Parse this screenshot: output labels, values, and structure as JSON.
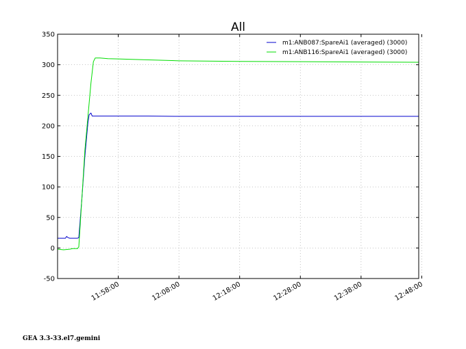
{
  "footer": {
    "text": "GEA 3.3-33.el7.gemini"
  },
  "chart_data": {
    "type": "line",
    "title": "All",
    "xlabel": "",
    "ylabel": "",
    "ylim": [
      -50,
      350
    ],
    "y_ticks": [
      -50,
      0,
      50,
      100,
      150,
      200,
      250,
      300,
      350
    ],
    "x_unit": "minutes after 11:48:00",
    "xlim": [
      0,
      59.5
    ],
    "x_ticks": [
      {
        "label": "11:58:00",
        "x": 10
      },
      {
        "label": "12:08:00",
        "x": 20
      },
      {
        "label": "12:18:00",
        "x": 30
      },
      {
        "label": "12:28:00",
        "x": 40
      },
      {
        "label": "12:38:00",
        "x": 50
      },
      {
        "label": "12:48:00",
        "x": 60
      }
    ],
    "grid": true,
    "legend_position": "top-right",
    "series": [
      {
        "name": "m1:ANB087:SpareAi1 (averaged) (3000)",
        "color": "#0000cc",
        "points": [
          [
            0,
            16
          ],
          [
            1.3,
            16
          ],
          [
            1.5,
            19
          ],
          [
            1.7,
            17
          ],
          [
            2,
            16
          ],
          [
            3.3,
            16
          ],
          [
            3.5,
            17
          ],
          [
            4.0,
            80
          ],
          [
            4.5,
            150
          ],
          [
            5.0,
            205
          ],
          [
            5.2,
            218
          ],
          [
            5.5,
            221
          ],
          [
            5.7,
            216
          ],
          [
            8,
            216
          ],
          [
            15,
            216
          ],
          [
            20,
            215.5
          ],
          [
            30,
            215.5
          ],
          [
            40,
            215.5
          ],
          [
            50,
            215.5
          ],
          [
            59.5,
            215.5
          ]
        ]
      },
      {
        "name": "m1:ANB116:SpareAi1 (averaged) (3000)",
        "color": "#00dd00",
        "points": [
          [
            0,
            -2
          ],
          [
            1,
            -3
          ],
          [
            2,
            -2
          ],
          [
            2.5,
            -1
          ],
          [
            3.3,
            -1
          ],
          [
            3.5,
            2
          ],
          [
            4.0,
            80
          ],
          [
            4.5,
            160
          ],
          [
            5.0,
            215
          ],
          [
            5.5,
            270
          ],
          [
            5.9,
            305
          ],
          [
            6.2,
            311
          ],
          [
            7.0,
            311
          ],
          [
            8.3,
            310
          ],
          [
            10,
            309.5
          ],
          [
            15,
            308
          ],
          [
            20,
            306.5
          ],
          [
            30,
            305.5
          ],
          [
            40,
            305
          ],
          [
            50,
            304.5
          ],
          [
            59.5,
            304
          ]
        ]
      }
    ]
  }
}
